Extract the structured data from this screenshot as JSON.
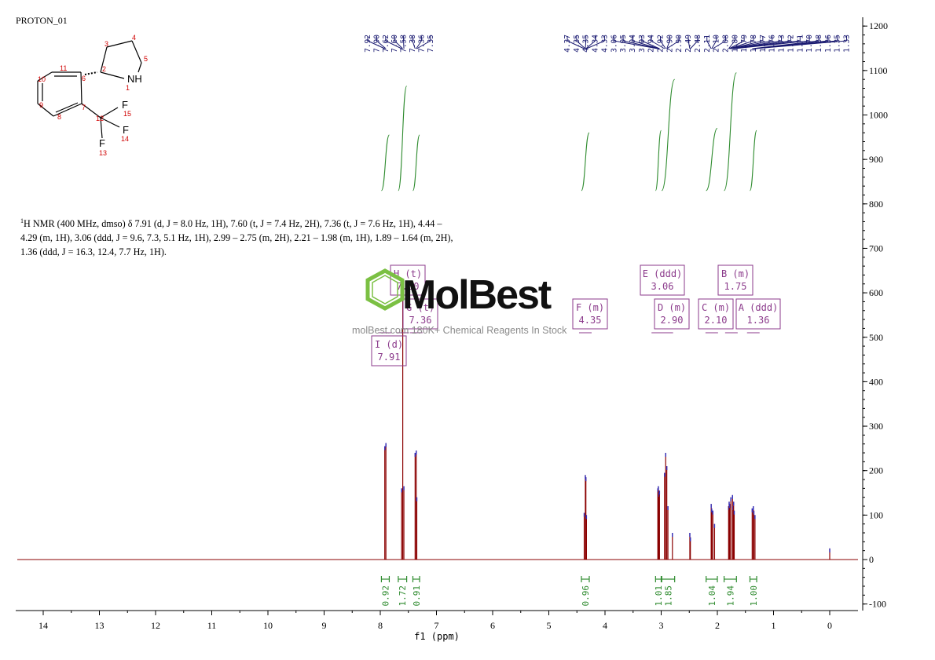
{
  "dataset_name": "PROTON_01",
  "nmr_description": {
    "nucleus_sup": "1",
    "text": "H NMR (400 MHz, dmso) δ 7.91 (d, J = 8.0 Hz, 1H), 7.60 (t, J = 7.4 Hz, 2H), 7.36 (t, J = 7.6 Hz, 1H), 4.44 – 4.29 (m, 1H), 3.06 (ddd, J = 9.6, 7.3, 5.1 Hz, 1H), 2.99 – 2.75 (m, 2H), 2.21 – 1.98 (m, 1H), 1.89 – 1.64 (m, 2H), 1.36 (ddd, J = 16.3, 12.4, 7.7 Hz, 1H)."
  },
  "watermark": {
    "brand": "MolBest",
    "tagline": "molBest.com 180K+ Chemical Reagents In Stock"
  },
  "structure": {
    "atoms": [
      {
        "label": "NH",
        "num": "1"
      },
      {
        "label": "",
        "num": "2"
      },
      {
        "label": "",
        "num": "3"
      },
      {
        "label": "",
        "num": "4"
      },
      {
        "label": "",
        "num": "5"
      },
      {
        "label": "",
        "num": "6"
      },
      {
        "label": "",
        "num": "7"
      },
      {
        "label": "",
        "num": "8"
      },
      {
        "label": "",
        "num": "9"
      },
      {
        "label": "",
        "num": "10"
      },
      {
        "label": "",
        "num": "11"
      },
      {
        "label": "",
        "num": "12"
      },
      {
        "label": "F",
        "num": "13"
      },
      {
        "label": "F",
        "num": "14"
      },
      {
        "label": "F",
        "num": "15"
      }
    ]
  },
  "colors": {
    "spectrum": "#8b0000",
    "peak_labels": "#191970",
    "integral": "#2e8b2e",
    "multiplet_box": "#8b3a8b",
    "atom_numbers": "#d00000"
  },
  "chart_data": {
    "type": "line",
    "xlabel": "f1 (ppm)",
    "xlim": [
      14.5,
      -0.5
    ],
    "ylim": [
      -100,
      1200
    ],
    "x_ticks": [
      "14",
      "13",
      "12",
      "11",
      "10",
      "9",
      "8",
      "7",
      "6",
      "5",
      "4",
      "3",
      "2",
      "1",
      "0"
    ],
    "y_ticks": [
      "1200",
      "1100",
      "1000",
      "900",
      "800",
      "700",
      "600",
      "500",
      "400",
      "300",
      "200",
      "100",
      "0",
      "-100"
    ],
    "peak_labels": [
      {
        "group": 1,
        "values": [
          "7.92",
          "7.90",
          "7.62",
          "7.60",
          "7.58",
          "7.38",
          "7.36",
          "7.35"
        ]
      },
      {
        "group": 2,
        "values": [
          "4.37",
          "4.35",
          "4.35",
          "4.34",
          "4.33",
          "3.06",
          "3.05",
          "3.04",
          "3.03",
          "2.94",
          "2.92",
          "2.90",
          "2.90",
          "2.49",
          "2.48",
          "2.11",
          "2.10",
          "2.08",
          "1.80",
          "1.79",
          "1.78",
          "1.77",
          "1.76",
          "1.73",
          "1.72",
          "1.71",
          "1.70",
          "1.38",
          "1.36",
          "1.35",
          "1.33"
        ]
      }
    ],
    "multiplets": [
      {
        "id": "I",
        "mult": "d",
        "shift": "7.91",
        "integral": "0.92"
      },
      {
        "id": "H",
        "mult": "t",
        "shift": "7.60",
        "integral": "1.72"
      },
      {
        "id": "G",
        "mult": "t",
        "shift": "7.36",
        "integral": "0.91"
      },
      {
        "id": "F",
        "mult": "m",
        "shift": "4.35",
        "integral": "0.96"
      },
      {
        "id": "E",
        "mult": "ddd",
        "shift": "3.06",
        "integral": "1.01"
      },
      {
        "id": "D",
        "mult": "m",
        "shift": "2.90",
        "integral": "1.85"
      },
      {
        "id": "C",
        "mult": "m",
        "shift": "2.10",
        "integral": "1.04"
      },
      {
        "id": "B",
        "mult": "m",
        "shift": "1.75",
        "integral": "1.94"
      },
      {
        "id": "A",
        "mult": "ddd",
        "shift": "1.36",
        "integral": "1.00"
      }
    ],
    "peaks": [
      {
        "x": 7.92,
        "y": 255
      },
      {
        "x": 7.9,
        "y": 262
      },
      {
        "x": 7.62,
        "y": 160
      },
      {
        "x": 7.6,
        "y": 590
      },
      {
        "x": 7.58,
        "y": 165
      },
      {
        "x": 7.38,
        "y": 240
      },
      {
        "x": 7.36,
        "y": 245
      },
      {
        "x": 7.35,
        "y": 140
      },
      {
        "x": 4.37,
        "y": 105
      },
      {
        "x": 4.35,
        "y": 190
      },
      {
        "x": 4.34,
        "y": 185
      },
      {
        "x": 4.33,
        "y": 100
      },
      {
        "x": 3.06,
        "y": 160
      },
      {
        "x": 3.05,
        "y": 165
      },
      {
        "x": 3.04,
        "y": 150
      },
      {
        "x": 3.03,
        "y": 155
      },
      {
        "x": 2.94,
        "y": 195
      },
      {
        "x": 2.92,
        "y": 240
      },
      {
        "x": 2.9,
        "y": 210
      },
      {
        "x": 2.88,
        "y": 120
      },
      {
        "x": 2.8,
        "y": 60
      },
      {
        "x": 2.49,
        "y": 60
      },
      {
        "x": 2.48,
        "y": 50
      },
      {
        "x": 2.11,
        "y": 125
      },
      {
        "x": 2.1,
        "y": 115
      },
      {
        "x": 2.08,
        "y": 110
      },
      {
        "x": 2.05,
        "y": 80
      },
      {
        "x": 1.8,
        "y": 120
      },
      {
        "x": 1.79,
        "y": 130
      },
      {
        "x": 1.78,
        "y": 125
      },
      {
        "x": 1.76,
        "y": 140
      },
      {
        "x": 1.73,
        "y": 145
      },
      {
        "x": 1.72,
        "y": 120
      },
      {
        "x": 1.71,
        "y": 130
      },
      {
        "x": 1.7,
        "y": 110
      },
      {
        "x": 1.38,
        "y": 115
      },
      {
        "x": 1.36,
        "y": 120
      },
      {
        "x": 1.35,
        "y": 110
      },
      {
        "x": 1.33,
        "y": 100
      },
      {
        "x": 0.0,
        "y": 25
      }
    ],
    "integral_curves": [
      {
        "x0": 7.98,
        "x1": 7.84,
        "y_base": 830,
        "y_top": 955
      },
      {
        "x0": 7.68,
        "x1": 7.53,
        "y_base": 830,
        "y_top": 1065
      },
      {
        "x0": 7.42,
        "x1": 7.3,
        "y_base": 830,
        "y_top": 955
      },
      {
        "x0": 4.42,
        "x1": 4.28,
        "y_base": 830,
        "y_top": 960
      },
      {
        "x0": 3.1,
        "x1": 3.0,
        "y_base": 830,
        "y_top": 965
      },
      {
        "x0": 2.99,
        "x1": 2.76,
        "y_base": 830,
        "y_top": 1080
      },
      {
        "x0": 2.2,
        "x1": 2.0,
        "y_base": 830,
        "y_top": 970
      },
      {
        "x0": 1.88,
        "x1": 1.66,
        "y_base": 830,
        "y_top": 1095
      },
      {
        "x0": 1.42,
        "x1": 1.3,
        "y_base": 830,
        "y_top": 965
      }
    ]
  }
}
